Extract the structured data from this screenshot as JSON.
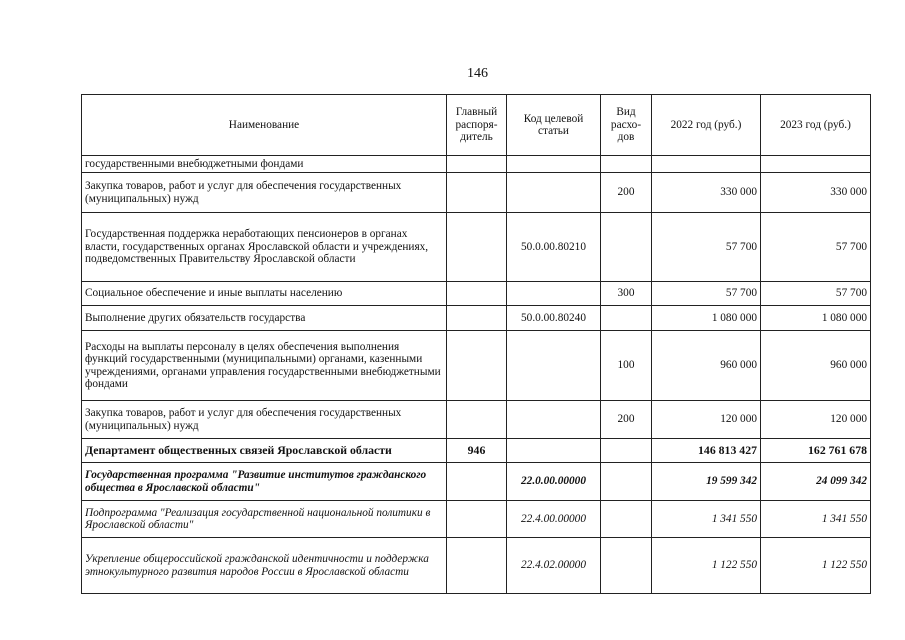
{
  "page_number": "146",
  "headers": [
    "Наименование",
    "Главный распоря-дитель",
    "Код целевой статьи",
    "Вид расхо-дов",
    "2022 год (руб.)",
    "2023 год (руб.)"
  ],
  "rows": [
    {
      "style": "",
      "name": "государственными внебюджетными фондами",
      "gr": "",
      "code": "",
      "vid": "",
      "y2022": "",
      "y2023": ""
    },
    {
      "style": "",
      "name": "Закупка товаров, работ и услуг для обеспечения государственных (муниципальных) нужд",
      "gr": "",
      "code": "",
      "vid": "200",
      "y2022": "330 000",
      "y2023": "330 000"
    },
    {
      "style": "",
      "name": "Государственная поддержка неработающих пенсионеров в органах власти, государственных органах Ярославской области и учреждениях, подведомственных Правительству Ярославской области",
      "gr": "",
      "code": "50.0.00.80210",
      "vid": "",
      "y2022": "57 700",
      "y2023": "57 700"
    },
    {
      "style": "",
      "name": "Социальное обеспечение и иные выплаты населению",
      "gr": "",
      "code": "",
      "vid": "300",
      "y2022": "57 700",
      "y2023": "57 700"
    },
    {
      "style": "",
      "name": "Выполнение других обязательств государства",
      "gr": "",
      "code": "50.0.00.80240",
      "vid": "",
      "y2022": "1 080 000",
      "y2023": "1 080 000"
    },
    {
      "style": "",
      "name": "Расходы на выплаты персоналу в целях обеспечения выполнения функций государственными (муниципальными) органами, казенными учреждениями, органами управления государственными внебюджетными фондами",
      "gr": "",
      "code": "",
      "vid": "100",
      "y2022": "960 000",
      "y2023": "960 000"
    },
    {
      "style": "",
      "name": "Закупка товаров, работ и услуг для обеспечения государственных (муниципальных) нужд",
      "gr": "",
      "code": "",
      "vid": "200",
      "y2022": "120 000",
      "y2023": "120 000"
    },
    {
      "style": "b",
      "name": "Департамент общественных связей Ярославской области",
      "gr": "946",
      "code": "",
      "vid": "",
      "y2022": "146 813 427",
      "y2023": "162 761 678"
    },
    {
      "style": "bi",
      "name": "Государственная программа \"Развитие институтов гражданского общества в Ярославской области\"",
      "gr": "",
      "code": "22.0.00.00000",
      "vid": "",
      "y2022": "19 599 342",
      "y2023": "24 099 342"
    },
    {
      "style": "i",
      "name": "Подпрограмма \"Реализация государственной национальной политики в Ярославской области\"",
      "gr": "",
      "code": "22.4.00.00000",
      "vid": "",
      "y2022": "1 341 550",
      "y2023": "1 341 550"
    },
    {
      "style": "i",
      "name": "Укрепление общероссийской гражданской идентичности и поддержка этнокультурного развития народов России в Ярославской области",
      "gr": "",
      "code": "22.4.02.00000",
      "vid": "",
      "y2022": "1 122 550",
      "y2023": "1 122 550"
    }
  ]
}
